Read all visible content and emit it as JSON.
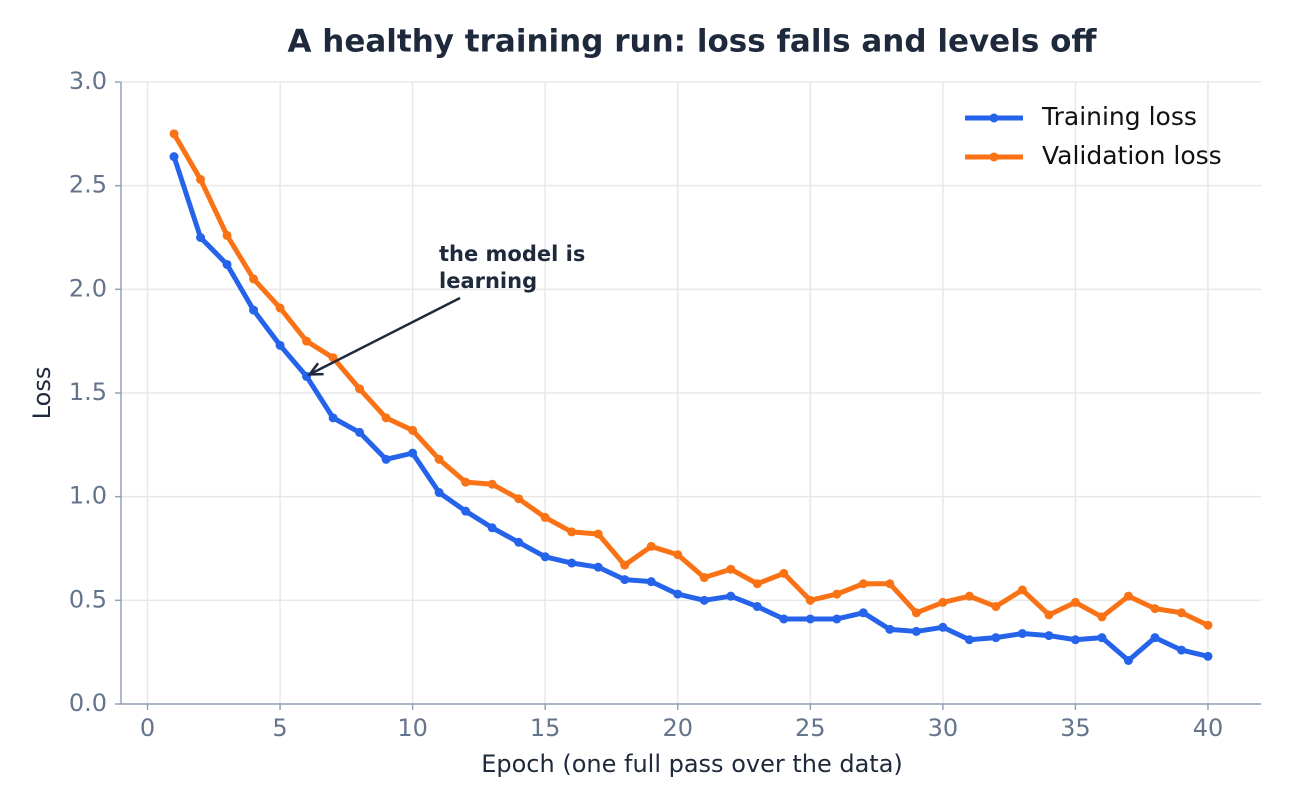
{
  "chart_data": {
    "type": "line",
    "title": "A healthy training run: loss falls and levels off",
    "x_label": "Epoch  (one full pass over the data)",
    "y_label": "Loss",
    "x": [
      1,
      2,
      3,
      4,
      5,
      6,
      7,
      8,
      9,
      10,
      11,
      12,
      13,
      14,
      15,
      16,
      17,
      18,
      19,
      20,
      21,
      22,
      23,
      24,
      25,
      26,
      27,
      28,
      29,
      30,
      31,
      32,
      33,
      34,
      35,
      36,
      37,
      38,
      39,
      40
    ],
    "series": [
      {
        "name": "Training loss",
        "color": "#2563eb",
        "values": [
          2.64,
          2.25,
          2.12,
          1.9,
          1.73,
          1.58,
          1.38,
          1.31,
          1.18,
          1.21,
          1.02,
          0.93,
          0.85,
          0.78,
          0.71,
          0.68,
          0.66,
          0.6,
          0.59,
          0.53,
          0.5,
          0.52,
          0.47,
          0.41,
          0.41,
          0.41,
          0.44,
          0.36,
          0.35,
          0.37,
          0.31,
          0.32,
          0.34,
          0.33,
          0.31,
          0.32,
          0.21,
          0.32,
          0.26,
          0.23
        ]
      },
      {
        "name": "Validation loss",
        "color": "#f97316",
        "values": [
          2.75,
          2.53,
          2.26,
          2.05,
          1.91,
          1.75,
          1.67,
          1.52,
          1.38,
          1.32,
          1.18,
          1.07,
          1.06,
          0.99,
          0.9,
          0.83,
          0.82,
          0.67,
          0.76,
          0.72,
          0.61,
          0.65,
          0.58,
          0.63,
          0.5,
          0.53,
          0.58,
          0.58,
          0.44,
          0.49,
          0.52,
          0.47,
          0.55,
          0.43,
          0.49,
          0.42,
          0.52,
          0.46,
          0.44,
          0.38
        ]
      }
    ],
    "annotation": "the model is\nlearning",
    "xlim": [
      -1,
      42
    ],
    "ylim": [
      0,
      3
    ],
    "xticks": [
      0,
      5,
      10,
      15,
      20,
      25,
      30,
      35,
      40
    ],
    "yticks": [
      {
        "value": 0,
        "label": "0.0"
      },
      0.5,
      {
        "value": 1,
        "label": "1.0"
      },
      1.5,
      {
        "value": 2,
        "label": "2.0"
      },
      2.5,
      {
        "value": 3,
        "label": "3.0"
      }
    ],
    "grid": true,
    "legend": "upper right"
  }
}
